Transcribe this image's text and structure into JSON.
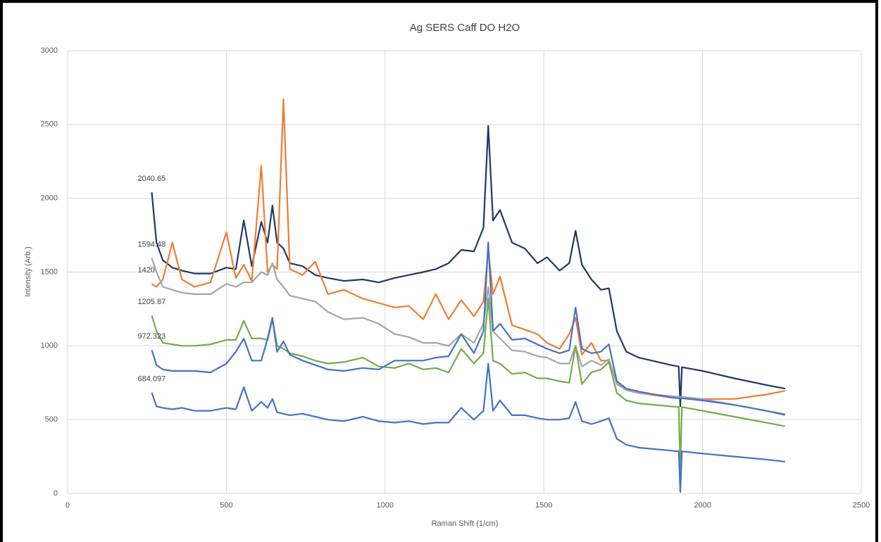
{
  "chart_data": {
    "type": "line",
    "title": "Ag SERS Caff DO H2O",
    "x_label": "Raman Shift (1/cm)",
    "y_label": "Intensity (Arb.)",
    "xlim": [
      0,
      2500
    ],
    "xticks": [
      0,
      500,
      1000,
      1500,
      2000,
      2500
    ],
    "ylim": [
      0,
      3000
    ],
    "yticks": [
      0,
      500,
      1000,
      1500,
      2000,
      2500,
      3000
    ],
    "grid": true,
    "label_first_point": true,
    "x": [
      265,
      280,
      300,
      330,
      360,
      400,
      450,
      500,
      530,
      555,
      580,
      610,
      630,
      645,
      660,
      680,
      700,
      740,
      780,
      820,
      870,
      930,
      980,
      1030,
      1075,
      1120,
      1160,
      1200,
      1240,
      1280,
      1310,
      1325,
      1340,
      1362,
      1400,
      1440,
      1480,
      1510,
      1550,
      1580,
      1600,
      1620,
      1650,
      1680,
      1705,
      1730,
      1760,
      1800,
      1900,
      1925,
      1930,
      1935,
      2000,
      2100,
      2200,
      2260
    ],
    "series": [
      {
        "color": "#203864",
        "values": [
          2040.65,
          1700,
          1580,
          1530,
          1510,
          1490,
          1490,
          1530,
          1520,
          1850,
          1540,
          1840,
          1700,
          1950,
          1700,
          1660,
          1560,
          1540,
          1480,
          1460,
          1440,
          1450,
          1430,
          1460,
          1480,
          1500,
          1520,
          1560,
          1650,
          1640,
          1800,
          2490,
          1850,
          1920,
          1700,
          1660,
          1560,
          1600,
          1510,
          1560,
          1780,
          1550,
          1450,
          1380,
          1390,
          1100,
          960,
          920,
          870,
          860,
          590,
          855,
          830,
          780,
          735,
          710
        ]
      },
      {
        "color": "#ed7d31",
        "values": [
          1420,
          1400,
          1450,
          1700,
          1450,
          1400,
          1430,
          1770,
          1460,
          1550,
          1440,
          2220,
          1500,
          1550,
          1520,
          2670,
          1520,
          1480,
          1570,
          1350,
          1380,
          1320,
          1290,
          1260,
          1270,
          1180,
          1350,
          1180,
          1310,
          1200,
          1300,
          1650,
          1350,
          1470,
          1140,
          1110,
          1080,
          1020,
          980,
          1080,
          1190,
          940,
          1020,
          900,
          900,
          760,
          700,
          680,
          650,
          645,
          645,
          645,
          640,
          640,
          670,
          695
        ]
      },
      {
        "color": "#a5a5a5",
        "values": [
          1594.48,
          1500,
          1400,
          1380,
          1360,
          1350,
          1350,
          1420,
          1400,
          1430,
          1430,
          1500,
          1480,
          1560,
          1450,
          1400,
          1340,
          1320,
          1300,
          1230,
          1180,
          1190,
          1150,
          1080,
          1060,
          1020,
          1020,
          1000,
          1080,
          1020,
          1150,
          1400,
          1100,
          1050,
          970,
          960,
          930,
          920,
          880,
          880,
          1000,
          860,
          900,
          870,
          910,
          740,
          700,
          680,
          660,
          655,
          655,
          655,
          640,
          600,
          560,
          530
        ]
      },
      {
        "color": "#70ad47",
        "values": [
          1205.87,
          1100,
          1020,
          1010,
          1000,
          1000,
          1010,
          1040,
          1040,
          1170,
          1050,
          1050,
          1040,
          1180,
          1000,
          980,
          950,
          930,
          900,
          880,
          890,
          920,
          860,
          850,
          880,
          840,
          850,
          820,
          980,
          880,
          950,
          1320,
          900,
          880,
          810,
          820,
          780,
          780,
          760,
          750,
          1000,
          740,
          820,
          840,
          890,
          680,
          630,
          610,
          590,
          585,
          170,
          585,
          560,
          520,
          480,
          455
        ]
      },
      {
        "color": "#4472c4",
        "values": [
          972.323,
          870,
          840,
          830,
          830,
          830,
          820,
          880,
          960,
          1050,
          900,
          900,
          1050,
          1190,
          960,
          1030,
          940,
          900,
          870,
          840,
          830,
          850,
          840,
          900,
          900,
          900,
          920,
          930,
          1080,
          950,
          1100,
          1700,
          1100,
          1150,
          1040,
          1050,
          1010,
          980,
          950,
          970,
          1260,
          980,
          950,
          960,
          1010,
          760,
          710,
          690,
          650,
          645,
          645,
          645,
          630,
          600,
          560,
          535
        ]
      },
      {
        "color": "#4472c4",
        "values": [
          684.097,
          590,
          580,
          570,
          580,
          560,
          560,
          580,
          570,
          720,
          560,
          620,
          580,
          640,
          550,
          540,
          530,
          540,
          520,
          500,
          490,
          520,
          490,
          480,
          490,
          470,
          480,
          480,
          580,
          500,
          560,
          880,
          560,
          630,
          530,
          530,
          510,
          500,
          500,
          510,
          620,
          490,
          470,
          490,
          510,
          370,
          330,
          310,
          290,
          285,
          10,
          285,
          270,
          250,
          230,
          215
        ]
      }
    ]
  }
}
